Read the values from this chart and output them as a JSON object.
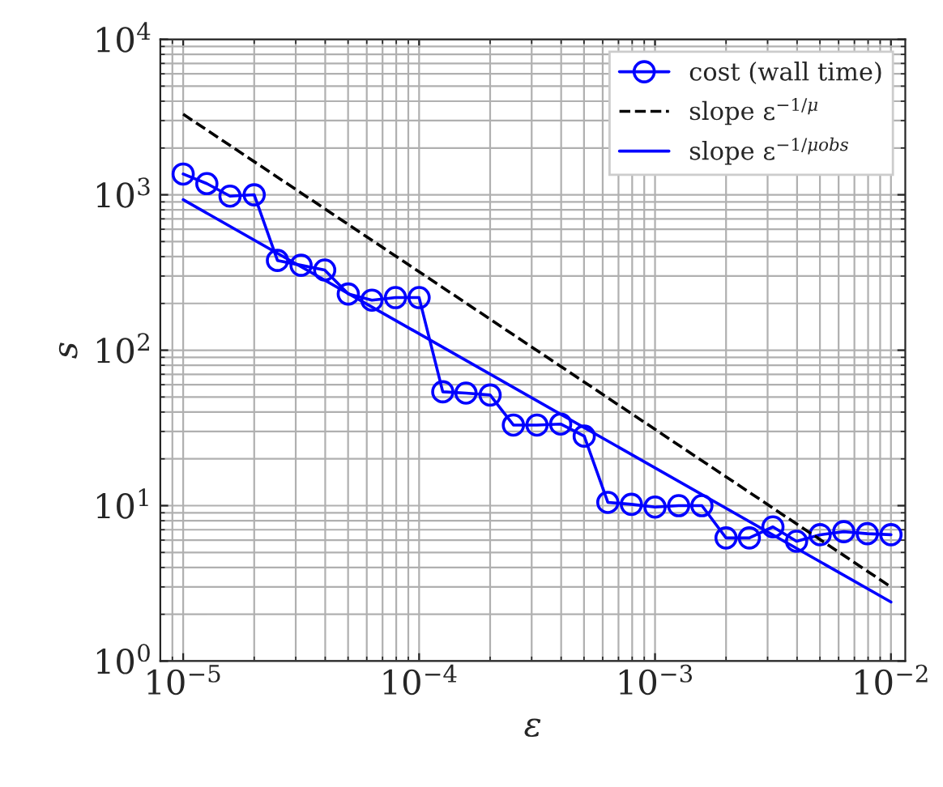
{
  "chart_data": {
    "type": "line",
    "xlabel": "ε",
    "ylabel": "s",
    "log": "xy",
    "grid": true,
    "legend": "top right",
    "xlim": [
      8e-06,
      0.0115
    ],
    "ylim": [
      1,
      10000
    ],
    "xticks": [
      {
        "value": 1e-05,
        "label": "10$^{−5}$"
      },
      {
        "value": 0.0001,
        "label": "10$^{−4}$"
      },
      {
        "value": 0.001,
        "label": "10$^{−3}$"
      },
      {
        "value": 0.01,
        "label": "10$^{−2}$"
      }
    ],
    "yticks": [
      {
        "value": 1,
        "label": "10$^{0}$"
      },
      {
        "value": 10,
        "label": "10$^{1}$"
      },
      {
        "value": 100,
        "label": "10$^{2}$"
      },
      {
        "value": 1000,
        "label": "10$^{3}$"
      },
      {
        "value": 10000,
        "label": "10$^{4}$"
      }
    ],
    "series": [
      {
        "name": "cost (wall time)",
        "color": "#0000ff",
        "marker": "circle",
        "line_style": "solid",
        "x": [
          1e-05,
          1.26e-05,
          1.58e-05,
          2e-05,
          2.51e-05,
          3.16e-05,
          3.98e-05,
          5.01e-05,
          6.31e-05,
          7.94e-05,
          0.0001,
          0.000126,
          0.000158,
          0.0002,
          0.000251,
          0.000316,
          0.000398,
          0.000501,
          0.000631,
          0.000794,
          0.001,
          0.00126,
          0.00158,
          0.002,
          0.00251,
          0.00316,
          0.00398,
          0.00501,
          0.00631,
          0.00794,
          0.01
        ],
        "values": [
          1360,
          1180,
          980,
          1000,
          378,
          352,
          328,
          230,
          210,
          218,
          218,
          54,
          53,
          51.5,
          33,
          33,
          33.5,
          28,
          10.5,
          10.2,
          9.8,
          10,
          10,
          6.2,
          6.2,
          7.3,
          5.9,
          6.5,
          6.8,
          6.6,
          6.5
        ]
      },
      {
        "name": "slope ε$^{−1/μ}$",
        "color": "#000000",
        "marker": "none",
        "line_style": "dashed",
        "x": [
          1e-05,
          0.01
        ],
        "values": [
          3300,
          3.0
        ]
      },
      {
        "name": "slope ε$^{−1/μobs}$",
        "color": "#0000ff",
        "marker": "none",
        "line_style": "solid",
        "x": [
          1e-05,
          0.01
        ],
        "values": [
          930,
          2.4
        ]
      }
    ]
  }
}
